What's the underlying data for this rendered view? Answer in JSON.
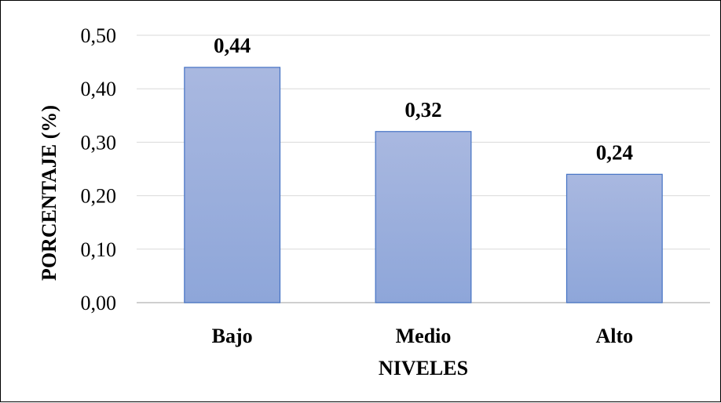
{
  "chart_data": {
    "type": "bar",
    "title": "",
    "xlabel": "NIVELES",
    "ylabel": "PORCENTAJE (%)",
    "categories": [
      "Bajo",
      "Medio",
      "Alto"
    ],
    "values": [
      0.44,
      0.32,
      0.24
    ],
    "data_labels": [
      "0,44",
      "0,32",
      "0,24"
    ],
    "ylim": [
      0,
      0.5
    ],
    "yticks": [
      0,
      0.1,
      0.2,
      0.3,
      0.4,
      0.5
    ],
    "ytick_labels": [
      "0,00",
      "0,10",
      "0,20",
      "0,30",
      "0,40",
      "0,50"
    ],
    "grid": true,
    "legend": "none",
    "colors": {
      "bar_top": "#a9b8e0",
      "bar_bottom": "#8ea6d9",
      "bar_stroke": "#4472c4",
      "grid": "#d9d9d9",
      "axis": "#bfbfbf"
    }
  }
}
